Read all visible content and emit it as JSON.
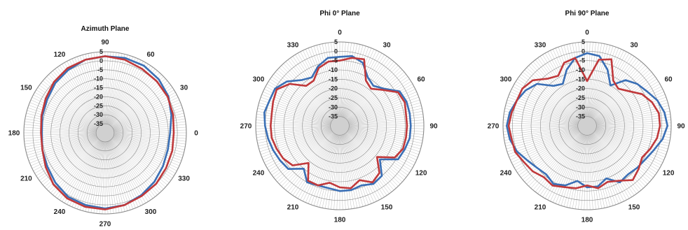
{
  "colors": {
    "blue": "#3a6fb5",
    "red": "#c0393b",
    "grid": "#8a8a8a",
    "center": "#d0d0d0"
  },
  "chart_data": [
    {
      "type": "polar-line",
      "title": "Azimuth Plane",
      "rlim": [
        -40,
        5
      ],
      "r_ticks": [
        "5",
        "0",
        "-5",
        "-10",
        "-15",
        "-20",
        "-25",
        "-30",
        "-35"
      ],
      "angle_labels": [
        "0",
        "30",
        "60",
        "90",
        "120",
        "150",
        "180",
        "210",
        "240",
        "270",
        "300",
        "330"
      ],
      "zero_direction": "east",
      "direction": "counterclockwise",
      "grid": true,
      "series": [
        {
          "color": "blue",
          "theta": [
            0,
            15,
            30,
            45,
            60,
            75,
            90,
            105,
            120,
            135,
            150,
            165,
            180,
            195,
            210,
            225,
            240,
            255,
            270,
            285,
            300,
            315,
            330,
            345
          ],
          "r": [
            -4,
            -2,
            0.5,
            2,
            3,
            3,
            2.5,
            2,
            0.5,
            -1,
            -3,
            -4,
            -5,
            -4,
            -3,
            -1,
            1,
            1.5,
            2,
            1.5,
            0,
            -1.5,
            -3,
            -4
          ]
        },
        {
          "color": "red",
          "theta": [
            0,
            15,
            30,
            45,
            60,
            75,
            90,
            105,
            120,
            135,
            150,
            165,
            180,
            195,
            210,
            225,
            240,
            255,
            270,
            285,
            300,
            315,
            330,
            345
          ],
          "r": [
            -2,
            -1,
            0,
            0.5,
            1,
            2,
            2.5,
            2,
            1.5,
            0,
            -2,
            -3.5,
            -4.5,
            -4,
            -2,
            0.5,
            2,
            2.5,
            2.5,
            1.5,
            0.5,
            0,
            -1,
            -1.5
          ]
        }
      ]
    },
    {
      "type": "polar-line",
      "title": "Phi 0° Plane",
      "rlim": [
        -40,
        5
      ],
      "r_ticks": [
        "5",
        "0",
        "-5",
        "-10",
        "-15",
        "-20",
        "-25",
        "-30",
        "-35"
      ],
      "angle_labels": [
        "0",
        "30",
        "60",
        "90",
        "120",
        "150",
        "180",
        "210",
        "240",
        "270",
        "300",
        "330"
      ],
      "zero_direction": "north",
      "direction": "clockwise",
      "grid": true,
      "series": [
        {
          "color": "blue",
          "theta": [
            0,
            10,
            20,
            30,
            40,
            50,
            60,
            70,
            80,
            90,
            100,
            110,
            120,
            130,
            140,
            150,
            160,
            170,
            180,
            190,
            200,
            210,
            220,
            230,
            240,
            250,
            260,
            270,
            280,
            290,
            300,
            310,
            320,
            330,
            340,
            350
          ],
          "r": [
            -3,
            -2,
            -4,
            -10,
            -12,
            -9,
            -3,
            -2,
            -2,
            -2,
            -2,
            -3,
            -4,
            -12,
            -5,
            -4,
            -6,
            -5,
            -5,
            -6,
            -6,
            -5,
            -10,
            -4,
            -3,
            -2,
            -1,
            0,
            1,
            0,
            0,
            -3,
            -8,
            -10,
            -6,
            -3
          ]
        },
        {
          "color": "red",
          "theta": [
            0,
            10,
            20,
            30,
            40,
            50,
            60,
            70,
            80,
            90,
            100,
            110,
            120,
            130,
            140,
            150,
            160,
            170,
            180,
            190,
            200,
            210,
            220,
            230,
            240,
            250,
            260,
            270,
            280,
            290,
            300,
            310,
            320,
            330,
            340,
            350
          ],
          "r": [
            -5,
            -3,
            -2,
            -12,
            -14,
            -10,
            -4,
            -3,
            -4,
            -4,
            -4,
            -4,
            -6,
            -14,
            -7,
            -5,
            -9,
            -6,
            -7,
            -9,
            -6,
            -6,
            -14,
            -7,
            -5,
            -4,
            -3,
            -3,
            -3,
            -2,
            -1,
            -5,
            -12,
            -12,
            -7,
            -5
          ]
        }
      ]
    },
    {
      "type": "polar-line",
      "title": "Phi 90° Plane",
      "rlim": [
        -40,
        5
      ],
      "r_ticks": [
        "5",
        "0",
        "-5",
        "-10",
        "-15",
        "-20",
        "-25",
        "-30",
        "-35"
      ],
      "angle_labels": [
        "0",
        "30",
        "60",
        "90",
        "120",
        "150",
        "180",
        "210",
        "240",
        "270",
        "300",
        "330"
      ],
      "zero_direction": "north",
      "direction": "clockwise",
      "grid": true,
      "series": [
        {
          "color": "blue",
          "theta": [
            0,
            10,
            20,
            30,
            40,
            50,
            60,
            70,
            80,
            90,
            100,
            110,
            120,
            130,
            140,
            150,
            160,
            170,
            180,
            190,
            200,
            210,
            220,
            230,
            240,
            250,
            260,
            270,
            280,
            290,
            300,
            310,
            320,
            330,
            340,
            350
          ],
          "r": [
            -1,
            -2,
            -8,
            -15,
            -8,
            -5,
            -3,
            0,
            2,
            3,
            1,
            -2,
            -4,
            -5,
            -6,
            -5,
            -10,
            -7,
            -7,
            -10,
            -6,
            -4,
            -6,
            -5,
            -3,
            0,
            2,
            3,
            2,
            0,
            -2,
            -5,
            -12,
            -14,
            -8,
            -3
          ]
        },
        {
          "color": "red",
          "theta": [
            0,
            10,
            20,
            30,
            40,
            50,
            60,
            70,
            80,
            90,
            100,
            110,
            120,
            130,
            140,
            150,
            160,
            170,
            180,
            190,
            200,
            210,
            220,
            230,
            240,
            250,
            260,
            270,
            280,
            290,
            300,
            310,
            320,
            330,
            340,
            350
          ],
          "r": [
            -16,
            -4,
            -2,
            -12,
            -14,
            -11,
            -6,
            -3,
            -1,
            -1,
            -2,
            -4,
            -6,
            -4,
            -2,
            -6,
            -8,
            -6,
            -8,
            -6,
            -5,
            -3,
            -4,
            -2,
            -1,
            1,
            1,
            2,
            1,
            0,
            0,
            -2,
            -7,
            -9,
            -4,
            -3
          ]
        }
      ]
    }
  ]
}
